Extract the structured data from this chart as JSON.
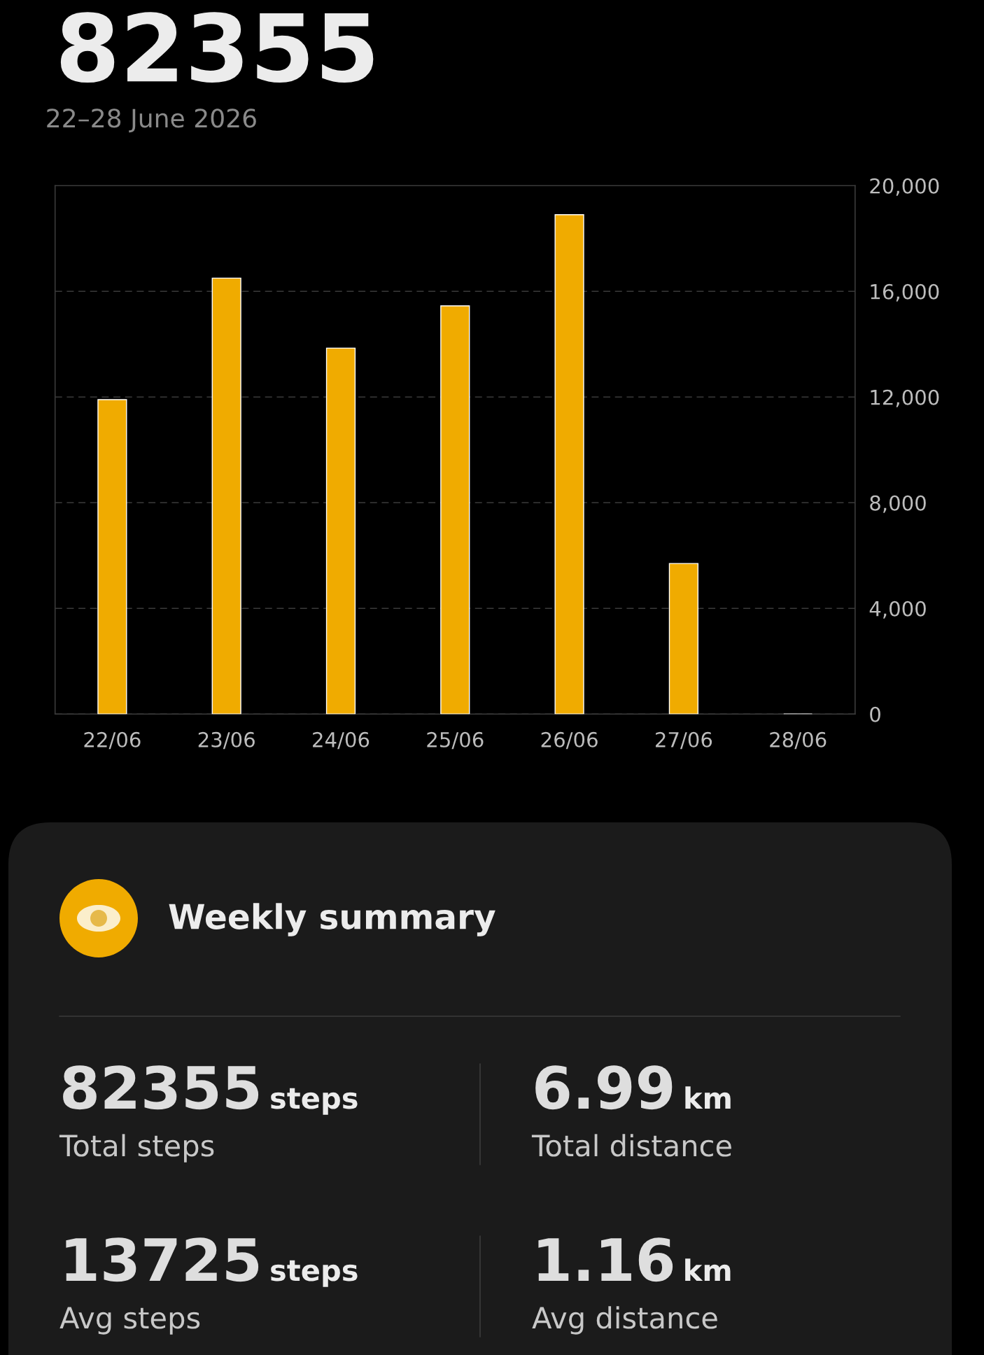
{
  "chart_data": [
    {
      "type": "bar",
      "title": "82355",
      "subtitle": "22–28 June 2026",
      "categories": [
        "22/06",
        "23/06",
        "24/06",
        "25/06",
        "26/06",
        "27/06",
        "28/06"
      ],
      "series": [
        {
          "color": "#f0ab00",
          "values": [
            11900,
            16500,
            13850,
            15450,
            18900,
            5700,
            null
          ]
        }
      ],
      "ylim": [
        0,
        20000
      ],
      "yticks": [
        {
          "value": 0,
          "label": "0"
        },
        {
          "value": 4000,
          "label": "4,000"
        },
        {
          "value": 8000,
          "label": "8,000"
        },
        {
          "value": 12000,
          "label": "12,000"
        },
        {
          "value": 16000,
          "label": "16,000"
        },
        {
          "value": 20000,
          "label": "20,000"
        }
      ],
      "grid": "y",
      "legend": false
    },
    {
      "type": "other",
      "title": "Weekly summary",
      "annotations": [
        "82355",
        "steps",
        "Total steps",
        "6.99",
        "km",
        "Total distance",
        "13725",
        "steps",
        "Avg steps",
        "1.16",
        "km",
        "Avg distance"
      ]
    }
  ]
}
